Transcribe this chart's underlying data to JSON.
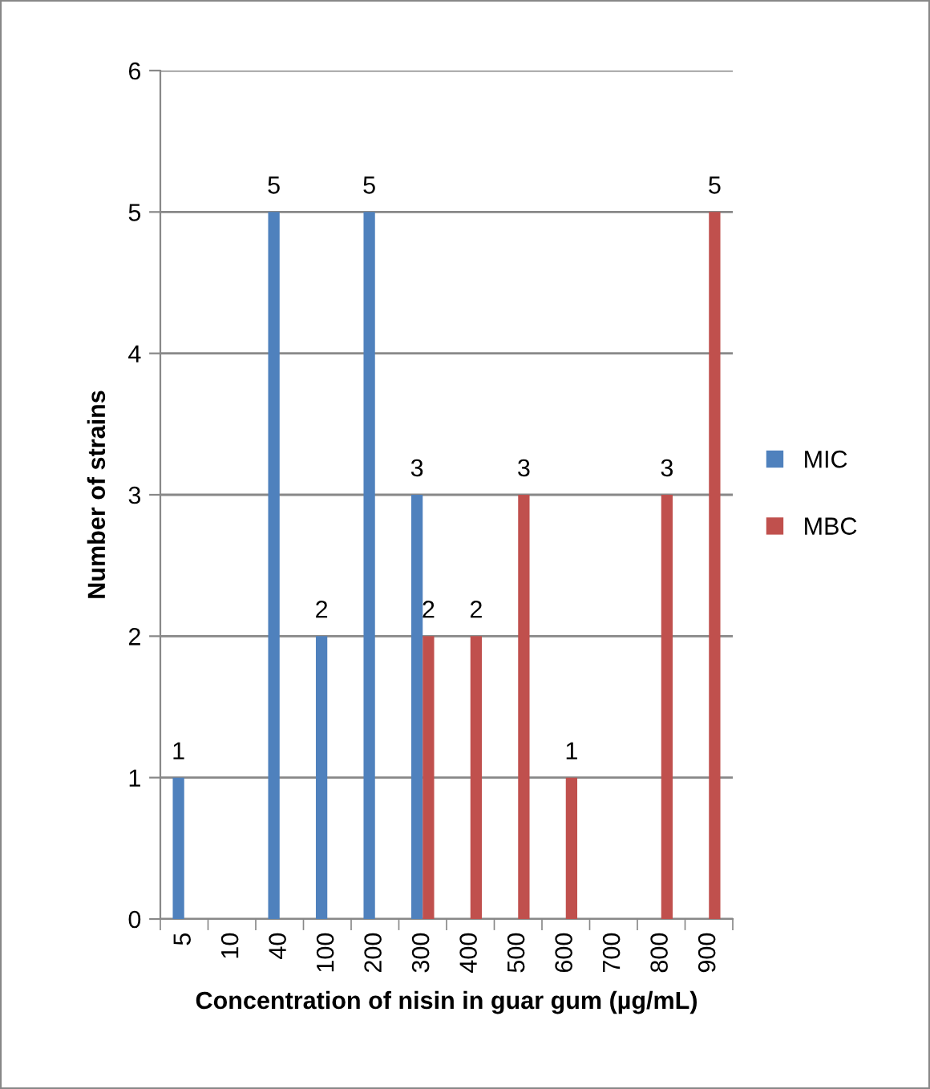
{
  "chart_data": {
    "type": "bar",
    "xlabel": "Concentration of nisin in guar gum (µg/mL)",
    "ylabel": "Number of strains",
    "categories": [
      "5",
      "10",
      "40",
      "100",
      "200",
      "300",
      "400",
      "500",
      "600",
      "700",
      "800",
      "900"
    ],
    "series": [
      {
        "name": "MIC",
        "color": "#4f81bd",
        "values": [
          1,
          0,
          5,
          2,
          5,
          3,
          0,
          0,
          0,
          0,
          0,
          0
        ],
        "value_labels": [
          "1",
          null,
          "5",
          "2",
          "5",
          "3",
          null,
          null,
          null,
          null,
          null,
          null
        ]
      },
      {
        "name": "MBC",
        "color": "#c0504d",
        "values": [
          0,
          0,
          0,
          0,
          0,
          2,
          2,
          3,
          1,
          0,
          3,
          5
        ],
        "value_labels": [
          null,
          null,
          null,
          null,
          null,
          "2",
          "2",
          "3",
          "1",
          null,
          "3",
          "5"
        ]
      }
    ],
    "ylim": [
      0,
      6
    ],
    "yticks": [
      0,
      1,
      2,
      3,
      4,
      5,
      6
    ],
    "grid": "y",
    "legend": "right"
  }
}
